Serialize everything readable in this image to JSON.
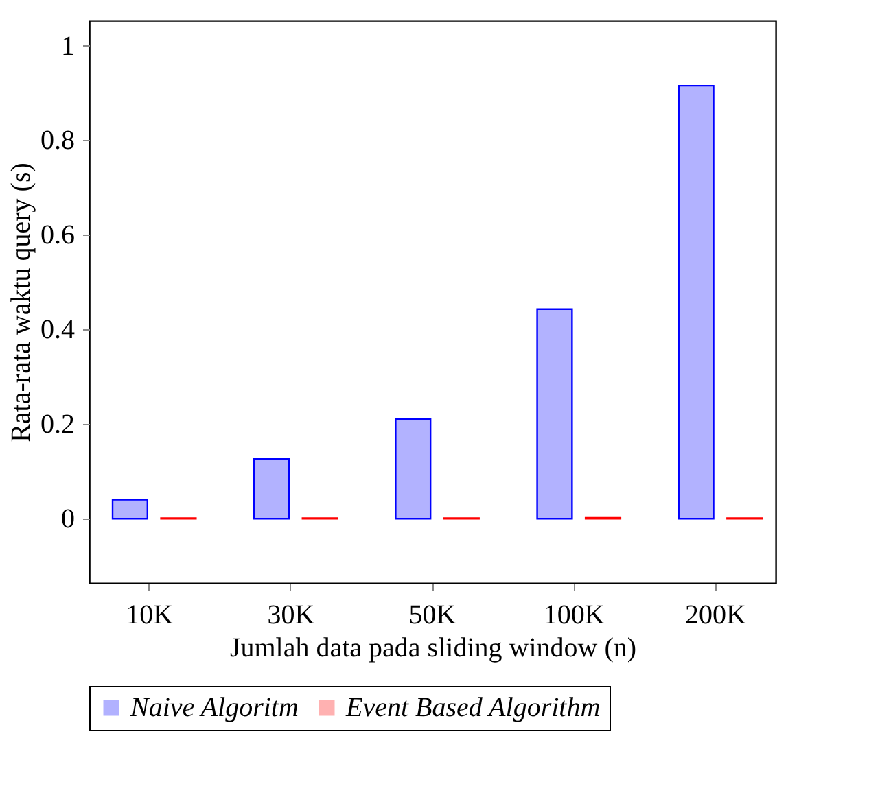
{
  "chart_data": {
    "type": "bar",
    "xlabel": "Jumlah data pada sliding window (n)",
    "ylabel": "Rata-rata waktu query (s)",
    "categories": [
      "10K",
      "30K",
      "50K",
      "100K",
      "200K"
    ],
    "series": [
      {
        "name": "Naive Algoritm",
        "color": "#0000ff",
        "values": [
          0.04,
          0.126,
          0.211,
          0.443,
          0.915
        ]
      },
      {
        "name": "Event Based Algorithm",
        "color": "#ff0000",
        "values": [
          0.001,
          0.001,
          0.001,
          0.002,
          0.001
        ]
      }
    ],
    "ylim": [
      -0.136,
      1.053
    ],
    "yticks": [
      0,
      0.2,
      0.4,
      0.6,
      0.8,
      1
    ],
    "grid": false,
    "legend": "bottom"
  }
}
